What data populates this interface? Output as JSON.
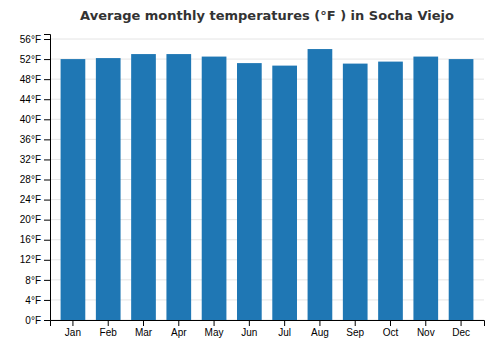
{
  "chart_data": {
    "type": "bar",
    "title": "Average monthly temperatures (°F ) in Socha Viejo",
    "categories": [
      "Jan",
      "Feb",
      "Mar",
      "Apr",
      "May",
      "Jun",
      "Jul",
      "Aug",
      "Sep",
      "Oct",
      "Nov",
      "Dec"
    ],
    "values": [
      52.0,
      52.2,
      53.0,
      53.0,
      52.5,
      51.2,
      50.7,
      54.0,
      51.1,
      51.5,
      52.5,
      52.0
    ],
    "ylim": [
      0,
      57
    ],
    "yticks": [
      {
        "value": 0,
        "label": "0°F"
      },
      {
        "value": 4,
        "label": "4°F"
      },
      {
        "value": 8,
        "label": "8°F"
      },
      {
        "value": 12,
        "label": "12°F"
      },
      {
        "value": 16,
        "label": "16°F"
      },
      {
        "value": 20,
        "label": "20°F"
      },
      {
        "value": 24,
        "label": "24°F"
      },
      {
        "value": 28,
        "label": "28°F"
      },
      {
        "value": 32,
        "label": "32°F"
      },
      {
        "value": 36,
        "label": "36°F"
      },
      {
        "value": 40,
        "label": "40°F"
      },
      {
        "value": 44,
        "label": "44°F"
      },
      {
        "value": 48,
        "label": "48°F"
      },
      {
        "value": 52,
        "label": "52°F"
      },
      {
        "value": 56,
        "label": "56°F"
      }
    ],
    "grid": true
  }
}
